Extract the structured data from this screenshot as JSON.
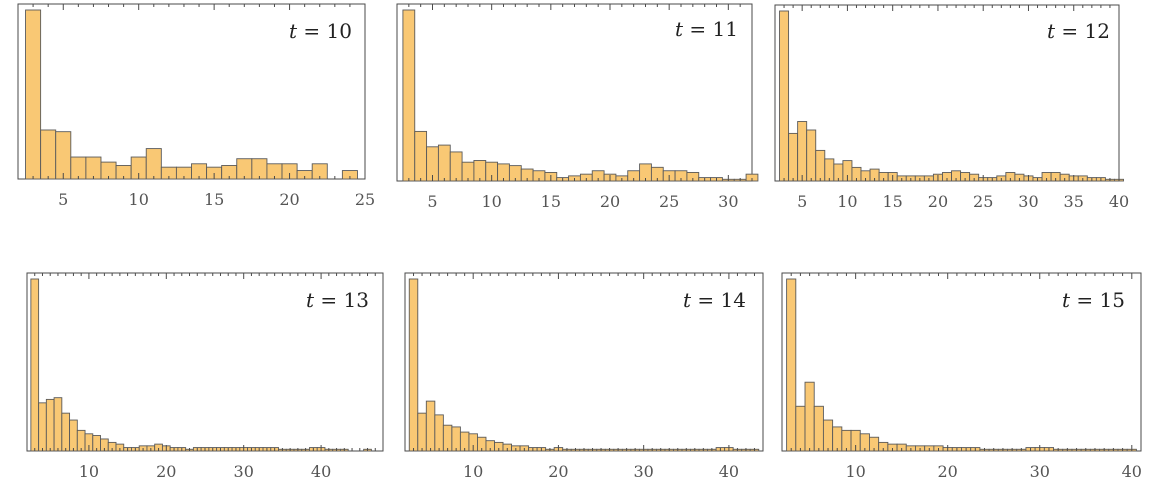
{
  "colors": {
    "bar_fill": "#f9c874",
    "bar_stroke": "#5a5a5a",
    "frame": "#4a4a4a",
    "tick_label": "#555555"
  },
  "chart_data": [
    {
      "type": "bar",
      "title": "t = 10",
      "title_var": "t",
      "title_eq": " = 10",
      "xlim": [
        2,
        25
      ],
      "ylim": [
        0,
        1
      ],
      "xticks": [
        5,
        10,
        15,
        20,
        25
      ],
      "grid": false,
      "bin_start": 2.5,
      "bin_width": 1,
      "values": [
        1.0,
        0.29,
        0.28,
        0.13,
        0.13,
        0.1,
        0.08,
        0.13,
        0.18,
        0.07,
        0.07,
        0.09,
        0.07,
        0.08,
        0.12,
        0.12,
        0.09,
        0.09,
        0.05,
        0.09,
        0.0,
        0.05
      ]
    },
    {
      "type": "bar",
      "title": "t = 11",
      "title_var": "t",
      "title_eq": " = 11",
      "xlim": [
        2,
        32
      ],
      "ylim": [
        0,
        1
      ],
      "xticks": [
        5,
        10,
        15,
        20,
        25,
        30
      ],
      "grid": false,
      "bin_start": 2.5,
      "bin_width": 1,
      "values": [
        1.0,
        0.29,
        0.2,
        0.21,
        0.17,
        0.11,
        0.12,
        0.11,
        0.1,
        0.09,
        0.07,
        0.06,
        0.05,
        0.02,
        0.03,
        0.04,
        0.06,
        0.04,
        0.03,
        0.06,
        0.1,
        0.08,
        0.06,
        0.06,
        0.05,
        0.02,
        0.02,
        0.01,
        0.01,
        0.04
      ]
    },
    {
      "type": "bar",
      "title": "t = 12",
      "title_var": "t",
      "title_eq": " = 12",
      "xlim": [
        2,
        40
      ],
      "ylim": [
        0,
        1
      ],
      "xticks": [
        5,
        10,
        15,
        20,
        25,
        30,
        35,
        40
      ],
      "grid": false,
      "bin_start": 2.5,
      "bin_width": 1,
      "values": [
        1.0,
        0.28,
        0.35,
        0.3,
        0.18,
        0.13,
        0.1,
        0.12,
        0.08,
        0.06,
        0.07,
        0.05,
        0.05,
        0.03,
        0.03,
        0.03,
        0.03,
        0.04,
        0.05,
        0.06,
        0.05,
        0.04,
        0.02,
        0.02,
        0.03,
        0.05,
        0.04,
        0.03,
        0.02,
        0.05,
        0.05,
        0.04,
        0.03,
        0.03,
        0.02,
        0.02,
        0.01,
        0.01
      ]
    },
    {
      "type": "bar",
      "title": "t = 13",
      "title_var": "t",
      "title_eq": " = 13",
      "xlim": [
        2,
        48
      ],
      "ylim": [
        0,
        1
      ],
      "xticks": [
        10,
        20,
        30,
        40
      ],
      "grid": false,
      "bin_start": 2.5,
      "bin_width": 1,
      "values": [
        1.0,
        0.28,
        0.3,
        0.31,
        0.22,
        0.18,
        0.12,
        0.1,
        0.09,
        0.07,
        0.05,
        0.04,
        0.02,
        0.02,
        0.03,
        0.03,
        0.04,
        0.03,
        0.02,
        0.02,
        0.01,
        0.02,
        0.02,
        0.02,
        0.02,
        0.02,
        0.02,
        0.02,
        0.02,
        0.02,
        0.02,
        0.02,
        0.01,
        0.01,
        0.01,
        0.01,
        0.02,
        0.02,
        0.01,
        0.01,
        0.01,
        0.0,
        0.0,
        0.01,
        0.0,
        0.0
      ]
    },
    {
      "type": "bar",
      "title": "t = 14",
      "title_var": "t",
      "title_eq": " = 14",
      "xlim": [
        2,
        44
      ],
      "ylim": [
        0,
        1
      ],
      "xticks": [
        10,
        20,
        30,
        40
      ],
      "grid": false,
      "bin_start": 2.5,
      "bin_width": 1,
      "values": [
        1.0,
        0.22,
        0.29,
        0.21,
        0.15,
        0.14,
        0.11,
        0.1,
        0.08,
        0.06,
        0.05,
        0.04,
        0.03,
        0.03,
        0.02,
        0.02,
        0.01,
        0.02,
        0.01,
        0.01,
        0.01,
        0.01,
        0.01,
        0.01,
        0.01,
        0.01,
        0.01,
        0.01,
        0.01,
        0.01,
        0.01,
        0.01,
        0.01,
        0.01,
        0.01,
        0.01,
        0.02,
        0.02,
        0.01,
        0.01,
        0.01,
        0.0
      ]
    },
    {
      "type": "bar",
      "title": "t = 15",
      "title_var": "t",
      "title_eq": " = 15",
      "xlim": [
        2,
        41
      ],
      "ylim": [
        0,
        1
      ],
      "xticks": [
        10,
        20,
        30,
        40
      ],
      "grid": false,
      "bin_start": 2.5,
      "bin_width": 1,
      "values": [
        1.0,
        0.26,
        0.4,
        0.26,
        0.18,
        0.14,
        0.12,
        0.12,
        0.1,
        0.08,
        0.05,
        0.04,
        0.04,
        0.03,
        0.03,
        0.03,
        0.03,
        0.02,
        0.02,
        0.02,
        0.02,
        0.01,
        0.01,
        0.01,
        0.01,
        0.01,
        0.02,
        0.02,
        0.02,
        0.01,
        0.01,
        0.01,
        0.01,
        0.01,
        0.01,
        0.01,
        0.01,
        0.01,
        0.0
      ]
    }
  ]
}
